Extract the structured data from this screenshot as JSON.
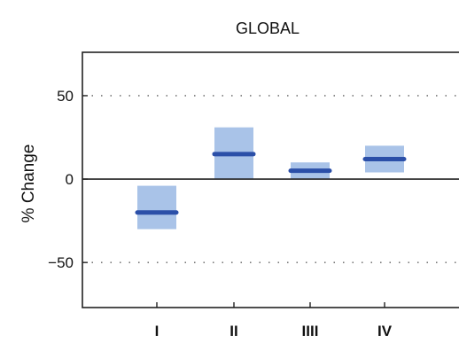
{
  "chart_data": {
    "type": "range-bar",
    "title": "GLOBAL",
    "xlabel": "",
    "ylabel": "% Change",
    "ylim": [
      -77,
      76
    ],
    "yticks": [
      50,
      0,
      -50
    ],
    "ytick_labels": [
      "50",
      "0",
      "−50"
    ],
    "grid": "dotted at ±50",
    "categories": [
      "I",
      "II",
      "IIII",
      "IV"
    ],
    "series": [
      {
        "low": [
          -30,
          0,
          0,
          4
        ],
        "high": [
          -4,
          31,
          10,
          20
        ],
        "median": [
          -20,
          15,
          5,
          12
        ]
      }
    ],
    "colors": {
      "range_fill": "#a9c3e8",
      "median_line": "#2b4fa8",
      "axis": "#222222",
      "grid": "#777777"
    }
  }
}
